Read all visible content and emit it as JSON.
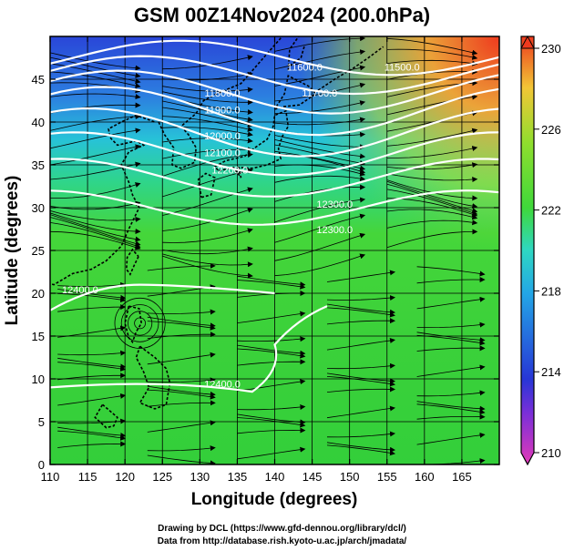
{
  "title": "GSM 00Z14Nov2024 (200.0hPa)",
  "footer": {
    "line1": "Drawing by DCL (https://www.gfd-dennou.org/library/dcl/)",
    "line2": "Data from http://database.rish.kyoto-u.ac.jp/arch/jmadata/"
  },
  "axes": {
    "xlabel": "Longitude (degrees)",
    "ylabel": "Latitude  (degrees)",
    "xticks": [
      "110",
      "115",
      "120",
      "125",
      "130",
      "135",
      "140",
      "145",
      "150",
      "155",
      "160",
      "165"
    ],
    "yticks": [
      "0",
      "5",
      "10",
      "15",
      "20",
      "25",
      "30",
      "35",
      "40",
      "45"
    ],
    "xlim": [
      110,
      170
    ],
    "ylim": [
      0,
      50
    ]
  },
  "colorbar": {
    "ticks": [
      "230",
      "226",
      "222",
      "218",
      "214",
      "210"
    ],
    "range": [
      210,
      230
    ]
  },
  "contour_labels": [
    {
      "text": "11800.0",
      "lon": 133,
      "lat": 43
    },
    {
      "text": "11900.0",
      "lon": 133,
      "lat": 41
    },
    {
      "text": "12000.0",
      "lon": 133,
      "lat": 38
    },
    {
      "text": "12100.0",
      "lon": 133,
      "lat": 36
    },
    {
      "text": "12200.0",
      "lon": 134,
      "lat": 34
    },
    {
      "text": "11600.0",
      "lon": 144,
      "lat": 46
    },
    {
      "text": "11700.0",
      "lon": 146,
      "lat": 43
    },
    {
      "text": "11500.0",
      "lon": 157,
      "lat": 46
    },
    {
      "text": "12300.0",
      "lon": 148,
      "lat": 30
    },
    {
      "text": "12300.0",
      "lon": 148,
      "lat": 27
    },
    {
      "text": "12400.0",
      "lon": 114,
      "lat": 20
    },
    {
      "text": "12400.0",
      "lon": 133,
      "lat": 9
    }
  ],
  "colors": {
    "high": "#ee3a1e",
    "low": "#2a2fd0",
    "mid": "#37d42a",
    "contour": "#ffffff",
    "streamline": "#000000"
  }
}
